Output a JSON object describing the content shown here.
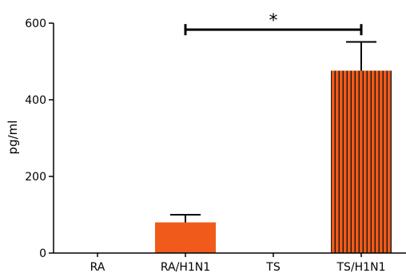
{
  "chart_data": {
    "type": "bar",
    "title": "",
    "xlabel": "",
    "ylabel": "pg/ml",
    "ylim": [
      0,
      600
    ],
    "yticks": [
      0,
      200,
      400,
      600
    ],
    "categories": [
      "RA",
      "RA/H1N1",
      "TS",
      "TS/H1N1"
    ],
    "values": [
      0,
      80,
      0,
      476
    ],
    "errors": [
      0,
      20,
      0,
      75
    ],
    "bar_fill": [
      "solid",
      "solid",
      "solid",
      "striped"
    ],
    "bar_color": "#f05a1a",
    "significance": {
      "from": "RA/H1N1",
      "to": "TS/H1N1",
      "label": "*",
      "y": 583
    },
    "grid": false,
    "legend": "none"
  }
}
